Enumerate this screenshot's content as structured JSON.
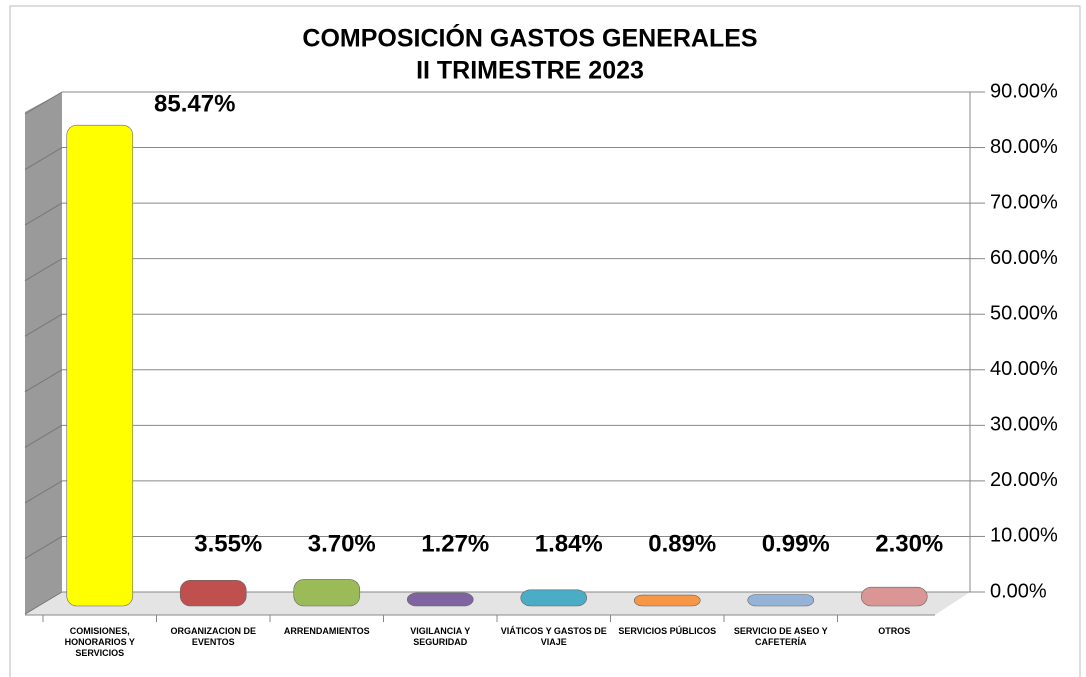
{
  "chart_data": {
    "type": "bar3d",
    "title": "COMPOSICIÓN GASTOS GENERALES",
    "subtitle": "II TRIMESTRE 2023",
    "categories": [
      "COMISIONES, HONORARIOS Y SERVICIOS",
      "ORGANIZACION DE EVENTOS",
      "ARRENDAMIENTOS",
      "VIGILANCIA Y SEGURIDAD",
      "VIÁTICOS Y GASTOS DE VIAJE",
      "SERVICIOS PÚBLICOS",
      "SERVICIO DE ASEO Y CAFETERÍA",
      "OTROS"
    ],
    "values": [
      85.47,
      3.55,
      3.7,
      1.27,
      1.84,
      0.89,
      0.99,
      2.3
    ],
    "value_labels": [
      "85.47%",
      "3.55%",
      "3.70%",
      "1.27%",
      "1.84%",
      "0.89%",
      "0.99%",
      "2.30%"
    ],
    "colors": [
      "#ffff00",
      "#c0504d",
      "#9bbb59",
      "#8064a2",
      "#4bacc6",
      "#f79646",
      "#95b3d7",
      "#d99694"
    ],
    "ylim": [
      0,
      90
    ],
    "yticks": [
      {
        "value": 0,
        "label": "0.00%"
      },
      {
        "value": 10,
        "label": "10.00%"
      },
      {
        "value": 20,
        "label": "20.00%"
      },
      {
        "value": 30,
        "label": "30.00%"
      },
      {
        "value": 40,
        "label": "40.00%"
      },
      {
        "value": 50,
        "label": "50.00%"
      },
      {
        "value": 60,
        "label": "60.00%"
      },
      {
        "value": 70,
        "label": "70.00%"
      },
      {
        "value": 80,
        "label": "80.00%"
      },
      {
        "value": 90,
        "label": "90.00%"
      }
    ],
    "grid": true
  }
}
